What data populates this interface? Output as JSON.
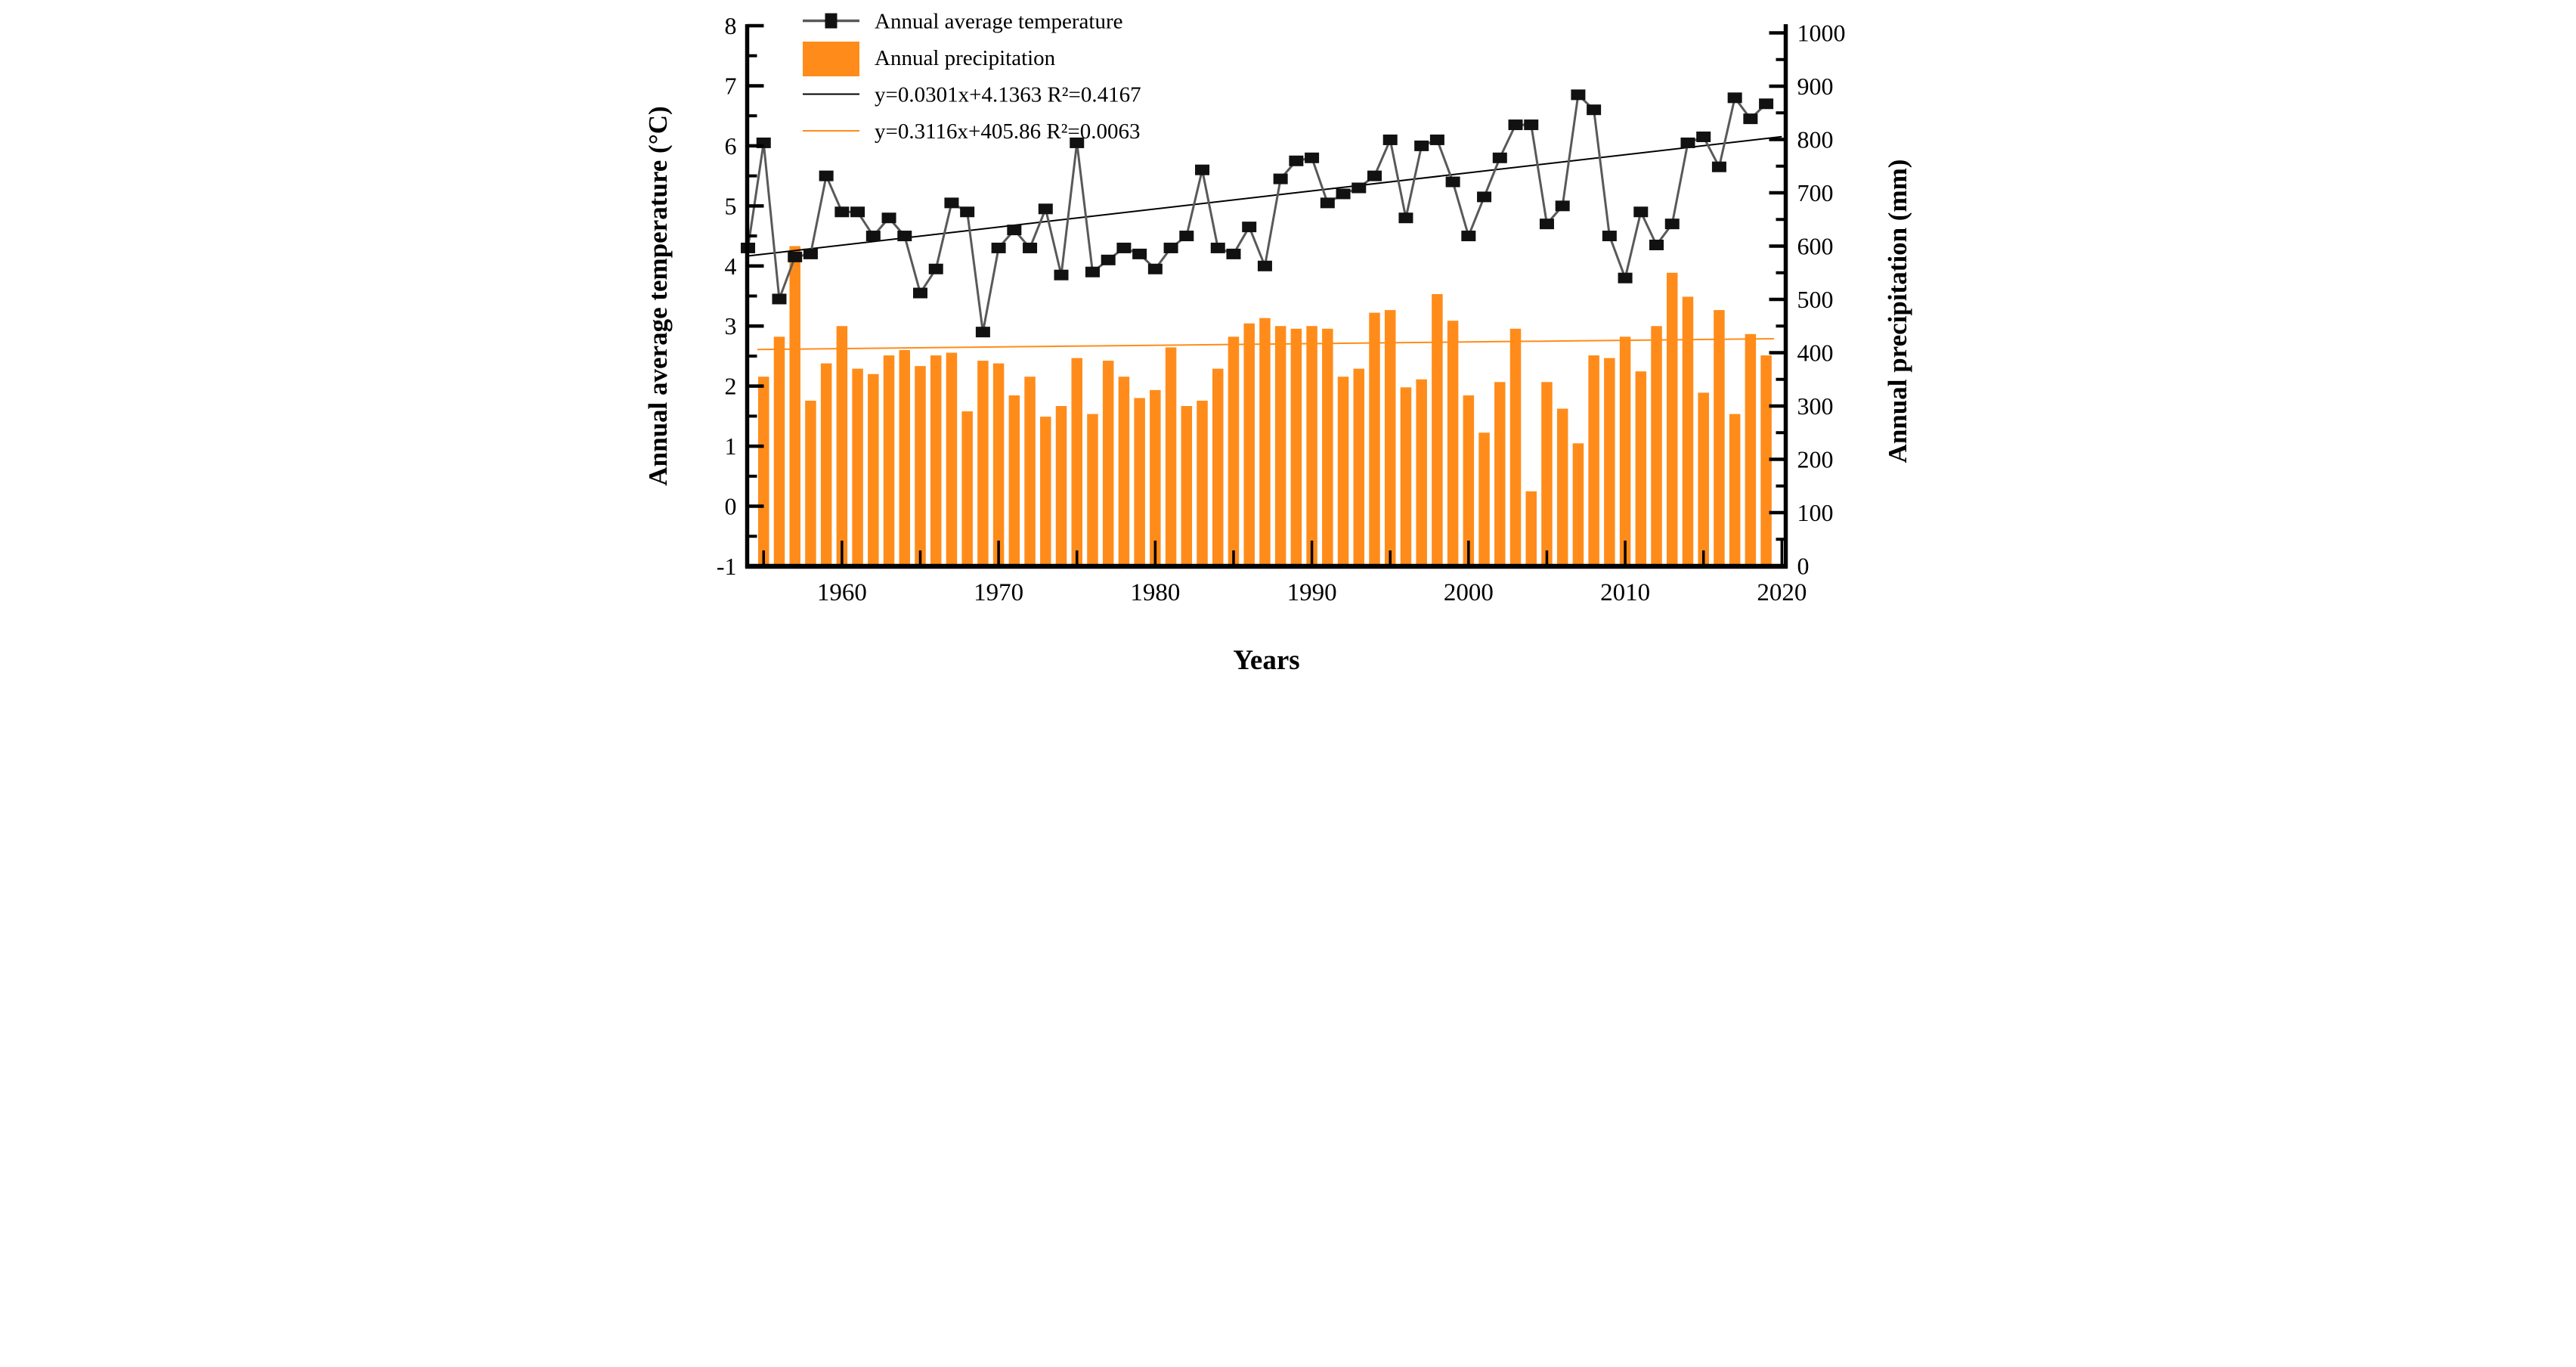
{
  "figure": {
    "left_axis_title": "Annual average temperature (°C)",
    "right_axis_title": "Annual precipitation (mm)",
    "x_axis_title": "Years",
    "colors": {
      "bar_orange": "#FF8C1A",
      "marker_black": "#111111",
      "data_line_gray": "#595959",
      "trend_black": "#000000",
      "trend_orange": "#FF8C1A"
    }
  },
  "chart_data": {
    "type": "bar+line",
    "title": "",
    "xlabel": "Years",
    "ylabel_left": "Annual average temperature (°C)",
    "ylabel_right": "Annual precipitation (mm)",
    "legend_position": "top-left",
    "grid": false,
    "legend": [
      {
        "swatch": "marker-line",
        "label": "Annual average temperature"
      },
      {
        "swatch": "bar",
        "label": "Annual precipitation"
      },
      {
        "swatch": "black-line",
        "label": "y=0.0301x+4.1363 R²=0.4167"
      },
      {
        "swatch": "orange-line",
        "label": "y=0.3116x+405.86 R²=0.0063"
      }
    ],
    "axes": {
      "x": {
        "min": 1953.95,
        "max": 2020.25,
        "major_ticks": [
          1960,
          1970,
          1980,
          1990,
          2000,
          2010,
          2020
        ],
        "minor_ticks": [
          1955,
          1965,
          1975,
          1985,
          1995,
          2005,
          2015
        ]
      },
      "left": {
        "min": -1,
        "max": 8,
        "major_step": 1,
        "minor_step": 0.5,
        "tick_labels": [
          "8",
          "7",
          "6",
          "5",
          "4",
          "3",
          "2",
          "1",
          "0",
          "-1"
        ]
      },
      "right": {
        "min": 0,
        "max": 1000,
        "major_step": 100,
        "minor_step": 50,
        "tick_labels": [
          "1000",
          "900",
          "800",
          "700",
          "600",
          "500",
          "400",
          "300",
          "200",
          "100",
          "0"
        ]
      }
    },
    "series": [
      {
        "name": "Annual average temperature",
        "type": "line",
        "axis": "left",
        "years": [
          1954,
          1955,
          1956,
          1957,
          1958,
          1959,
          1960,
          1961,
          1962,
          1963,
          1964,
          1965,
          1966,
          1967,
          1968,
          1969,
          1970,
          1971,
          1972,
          1973,
          1974,
          1975,
          1976,
          1977,
          1978,
          1979,
          1980,
          1981,
          1982,
          1983,
          1984,
          1985,
          1986,
          1987,
          1988,
          1989,
          1990,
          1991,
          1992,
          1993,
          1994,
          1995,
          1996,
          1997,
          1998,
          1999,
          2000,
          2001,
          2002,
          2003,
          2004,
          2005,
          2006,
          2007,
          2008,
          2009,
          2010,
          2011,
          2012,
          2013,
          2014,
          2015,
          2016,
          2017,
          2018,
          2019
        ],
        "values": [
          4.3,
          6.05,
          3.45,
          4.15,
          4.2,
          5.5,
          4.9,
          4.9,
          4.5,
          4.8,
          4.5,
          3.55,
          3.95,
          5.05,
          4.9,
          2.9,
          4.3,
          4.6,
          4.3,
          4.95,
          3.85,
          6.05,
          3.9,
          4.1,
          4.3,
          4.2,
          3.95,
          4.3,
          4.5,
          5.6,
          4.3,
          4.2,
          4.65,
          4.0,
          5.45,
          5.75,
          5.8,
          5.05,
          5.2,
          5.3,
          5.5,
          6.1,
          4.8,
          6.0,
          6.1,
          5.4,
          4.5,
          5.15,
          5.8,
          6.35,
          6.35,
          4.7,
          5.0,
          6.85,
          6.6,
          4.5,
          3.8,
          4.9,
          4.35,
          4.7,
          6.05,
          6.15,
          5.65,
          6.8,
          6.45,
          6.7
        ]
      },
      {
        "name": "Annual precipitation",
        "type": "bar",
        "axis": "right",
        "years": [
          1955,
          1956,
          1957,
          1958,
          1959,
          1960,
          1961,
          1962,
          1963,
          1964,
          1965,
          1966,
          1967,
          1968,
          1969,
          1970,
          1971,
          1972,
          1973,
          1974,
          1975,
          1976,
          1977,
          1978,
          1979,
          1980,
          1981,
          1982,
          1983,
          1984,
          1985,
          1986,
          1987,
          1988,
          1989,
          1990,
          1991,
          1992,
          1993,
          1994,
          1995,
          1996,
          1997,
          1998,
          1999,
          2000,
          2001,
          2002,
          2003,
          2004,
          2005,
          2006,
          2007,
          2008,
          2009,
          2010,
          2011,
          2012,
          2013,
          2014,
          2015,
          2016,
          2017,
          2018,
          2019
        ],
        "values": [
          355,
          430,
          600,
          310,
          380,
          450,
          370,
          360,
          395,
          405,
          375,
          395,
          400,
          290,
          385,
          380,
          320,
          355,
          280,
          300,
          390,
          285,
          385,
          355,
          315,
          330,
          410,
          300,
          310,
          370,
          430,
          455,
          465,
          450,
          445,
          450,
          445,
          355,
          370,
          475,
          480,
          335,
          350,
          510,
          460,
          320,
          250,
          345,
          445,
          140,
          345,
          295,
          230,
          395,
          390,
          430,
          365,
          450,
          550,
          505,
          325,
          480,
          285,
          435,
          395
        ]
      }
    ],
    "trendlines": [
      {
        "label": "y=0.0301x+4.1363 R²=0.4167",
        "axis": "left",
        "slope": 0.0301,
        "intercept": 4.1363,
        "x_index_origin_year": 1953,
        "draw_from_year": 1953.95,
        "draw_to_year": 2020.0,
        "color": "#000000"
      },
      {
        "label": "y=0.3116x+405.86 R²=0.0063",
        "axis": "right",
        "slope": 0.3116,
        "intercept": 405.86,
        "x_index_origin_year": 1954,
        "draw_from_year": 1954.6,
        "draw_to_year": 2019.5,
        "color": "#FF8C1A"
      }
    ]
  }
}
